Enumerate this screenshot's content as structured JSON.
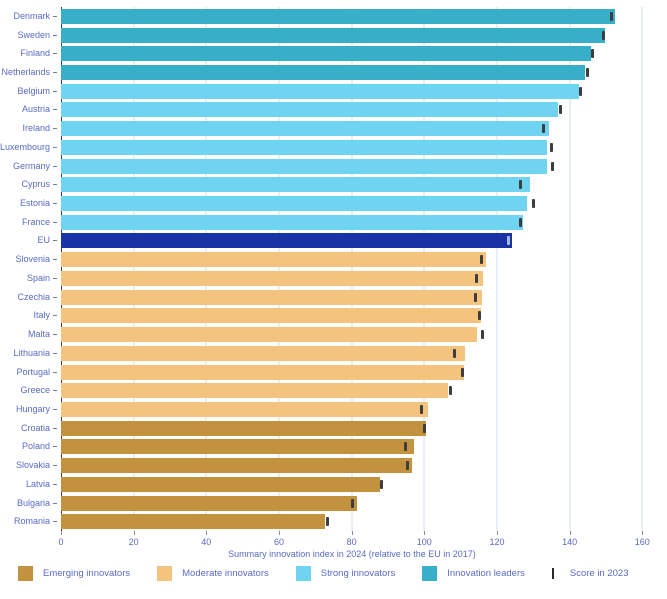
{
  "colors": {
    "innovation_leaders": "#38afc8",
    "strong_innovators": "#6fd3f2",
    "moderate_innovators": "#f4c37e",
    "emerging_innovators": "#c2923f",
    "eu": "#1933a7",
    "score_marker": "#3d3d3d",
    "score_marker_on_eu": "#aab6da",
    "gridline": "#e8eef6",
    "axis_line": "#3f3f3f",
    "text": "#5a6bc5"
  },
  "chart_data": {
    "type": "bar",
    "orientation": "horizontal",
    "xlabel": "Summary innovation index in 2024 (relative to the EU in 2017)",
    "xlim": [
      0,
      160
    ],
    "xticks": [
      0,
      20,
      40,
      60,
      80,
      100,
      120,
      140,
      160
    ],
    "grid": true,
    "marker_series_name": "Score in 2023",
    "rows": [
      {
        "label": "Denmark",
        "value_2024": 152.6,
        "score_2023": 151.5,
        "category": "innovation_leaders"
      },
      {
        "label": "Sweden",
        "value_2024": 149.8,
        "score_2023": 149.3,
        "category": "innovation_leaders"
      },
      {
        "label": "Finland",
        "value_2024": 145.9,
        "score_2023": 146.4,
        "category": "innovation_leaders"
      },
      {
        "label": "Netherlands",
        "value_2024": 144.3,
        "score_2023": 144.8,
        "category": "innovation_leaders"
      },
      {
        "label": "Belgium",
        "value_2024": 142.6,
        "score_2023": 142.9,
        "category": "strong_innovators"
      },
      {
        "label": "Austria",
        "value_2024": 136.7,
        "score_2023": 137.6,
        "category": "strong_innovators"
      },
      {
        "label": "Ireland",
        "value_2024": 134.3,
        "score_2023": 132.9,
        "category": "strong_innovators"
      },
      {
        "label": "Luxembourg",
        "value_2024": 133.8,
        "score_2023": 135.1,
        "category": "strong_innovators"
      },
      {
        "label": "Germany",
        "value_2024": 133.7,
        "score_2023": 135.3,
        "category": "strong_innovators"
      },
      {
        "label": "Cyprus",
        "value_2024": 129.1,
        "score_2023": 126.5,
        "category": "strong_innovators"
      },
      {
        "label": "Estonia",
        "value_2024": 128.2,
        "score_2023": 130.0,
        "category": "strong_innovators"
      },
      {
        "label": "France",
        "value_2024": 127.2,
        "score_2023": 126.6,
        "category": "strong_innovators"
      },
      {
        "label": "EU",
        "value_2024": 124.0,
        "score_2023": 123.2,
        "category": "eu"
      },
      {
        "label": "Slovenia",
        "value_2024": 117.0,
        "score_2023": 115.7,
        "category": "moderate_innovators"
      },
      {
        "label": "Spain",
        "value_2024": 116.2,
        "score_2023": 114.3,
        "category": "moderate_innovators"
      },
      {
        "label": "Czechia",
        "value_2024": 115.8,
        "score_2023": 114.2,
        "category": "moderate_innovators"
      },
      {
        "label": "Italy",
        "value_2024": 115.7,
        "score_2023": 115.1,
        "category": "moderate_innovators"
      },
      {
        "label": "Malta",
        "value_2024": 114.6,
        "score_2023": 115.9,
        "category": "moderate_innovators"
      },
      {
        "label": "Lithuania",
        "value_2024": 111.3,
        "score_2023": 108.4,
        "category": "moderate_innovators"
      },
      {
        "label": "Portugal",
        "value_2024": 111.0,
        "score_2023": 110.5,
        "category": "moderate_innovators"
      },
      {
        "label": "Greece",
        "value_2024": 106.6,
        "score_2023": 107.1,
        "category": "moderate_innovators"
      },
      {
        "label": "Hungary",
        "value_2024": 101.1,
        "score_2023": 99.3,
        "category": "moderate_innovators"
      },
      {
        "label": "Croatia",
        "value_2024": 100.5,
        "score_2023": 100.0,
        "category": "emerging_innovators"
      },
      {
        "label": "Poland",
        "value_2024": 97.1,
        "score_2023": 94.8,
        "category": "emerging_innovators"
      },
      {
        "label": "Slovakia",
        "value_2024": 96.5,
        "score_2023": 95.3,
        "category": "emerging_innovators"
      },
      {
        "label": "Latvia",
        "value_2024": 87.8,
        "score_2023": 88.1,
        "category": "emerging_innovators"
      },
      {
        "label": "Bulgaria",
        "value_2024": 81.6,
        "score_2023": 80.3,
        "category": "emerging_innovators"
      },
      {
        "label": "Romania",
        "value_2024": 72.7,
        "score_2023": 73.4,
        "category": "emerging_innovators"
      }
    ]
  },
  "legend": {
    "items": [
      {
        "label": "Emerging innovators",
        "color_key": "emerging_innovators"
      },
      {
        "label": "Moderate innovators",
        "color_key": "moderate_innovators"
      },
      {
        "label": "Strong innovators",
        "color_key": "strong_innovators"
      },
      {
        "label": "Innovation leaders",
        "color_key": "innovation_leaders"
      }
    ],
    "score_item_label": "Score in 2023"
  }
}
